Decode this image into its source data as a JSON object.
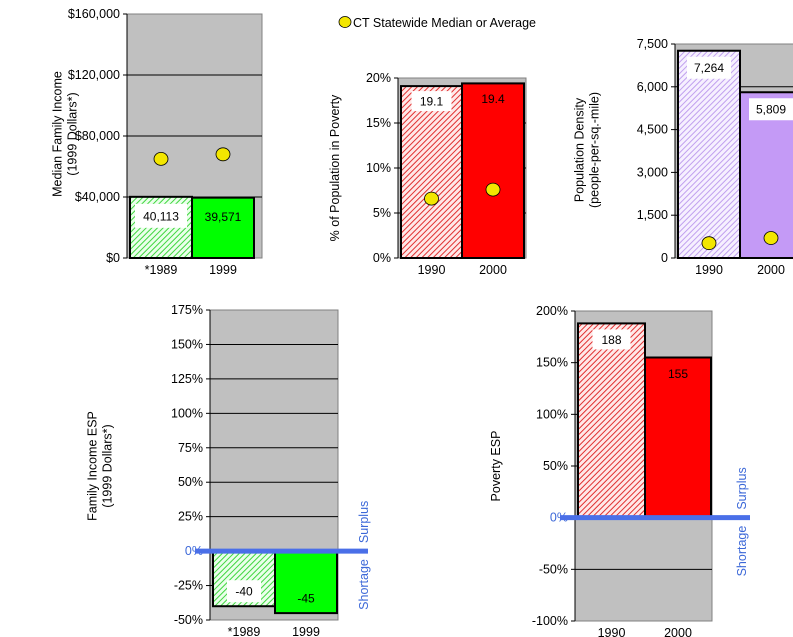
{
  "legend": {
    "label": "CT Statewide Median or Average",
    "marker_color": "#f3e600"
  },
  "colors": {
    "plot_bg": "#c0c0c0",
    "green_hatch": "#3fd63f",
    "green_solid": "#00ff00",
    "red_hatch": "#e03030",
    "red_solid": "#ff0000",
    "purple_hatch": "#c0a0ee",
    "purple_solid": "#c49af6",
    "zero_line": "#4a6fe8",
    "marker": "#f3e600"
  },
  "chart_data": [
    {
      "type": "bar",
      "ylabel_lines": [
        "Median  Family  Income",
        "(1999 Dollars*)"
      ],
      "categories": [
        "*1989",
        "1999"
      ],
      "values": [
        40113,
        39571
      ],
      "value_labels": [
        "40,113",
        "39,571"
      ],
      "statewide": [
        65000,
        68000
      ],
      "ylim": [
        0,
        160000
      ],
      "yticks": [
        0,
        40000,
        80000,
        120000,
        160000
      ],
      "ytick_labels": [
        "$0",
        "$40,000",
        "$80,000",
        "$120,000",
        "$160,000"
      ],
      "grid": true
    },
    {
      "type": "bar",
      "ylabel_lines": [
        "% of Population in Poverty"
      ],
      "categories": [
        "1990",
        "2000"
      ],
      "values": [
        19.1,
        19.4
      ],
      "value_labels": [
        "19.1",
        "19.4"
      ],
      "statewide": [
        6.6,
        7.6
      ],
      "ylim": [
        0,
        20
      ],
      "yticks": [
        0,
        5,
        10,
        15,
        20
      ],
      "ytick_labels": [
        "0%",
        "5%",
        "10%",
        "15%",
        "20%"
      ],
      "grid": true
    },
    {
      "type": "bar",
      "ylabel_lines": [
        "Population  Density",
        "(people-per-sq.-mile)"
      ],
      "categories": [
        "1990",
        "2000"
      ],
      "values": [
        7264,
        5809
      ],
      "value_labels": [
        "7,264",
        "5,809"
      ],
      "statewide": [
        520,
        700
      ],
      "ylim": [
        0,
        7500
      ],
      "yticks": [
        0,
        1500,
        3000,
        4500,
        6000,
        7500
      ],
      "ytick_labels": [
        "0",
        "1,500",
        "3,000",
        "4,500",
        "6,000",
        "7,500"
      ],
      "grid": true
    },
    {
      "type": "bar",
      "ylabel_lines": [
        "Family  Income  ESP",
        "(1999 Dollars*)"
      ],
      "categories": [
        "*1989",
        "1999"
      ],
      "values": [
        -40,
        -45
      ],
      "value_labels": [
        "-40",
        "-45"
      ],
      "ylim": [
        -50,
        175
      ],
      "yticks": [
        -50,
        -25,
        0,
        25,
        50,
        75,
        100,
        125,
        150,
        175
      ],
      "ytick_labels": [
        "-50%",
        "-25%",
        "0%",
        "25%",
        "50%",
        "75%",
        "100%",
        "125%",
        "150%",
        "175%"
      ],
      "grid": true,
      "surplus_label": "Surplus",
      "shortage_label": "Shortage"
    },
    {
      "type": "bar",
      "ylabel_lines": [
        "Poverty  ESP"
      ],
      "categories": [
        "1990",
        "2000"
      ],
      "values": [
        188,
        155
      ],
      "value_labels": [
        "188",
        "155"
      ],
      "ylim": [
        -100,
        200
      ],
      "yticks": [
        -100,
        -50,
        0,
        50,
        100,
        150,
        200
      ],
      "ytick_labels": [
        "-100%",
        "-50%",
        "0%",
        "50%",
        "100%",
        "150%",
        "200%"
      ],
      "grid": true,
      "surplus_label": "Surplus",
      "shortage_label": "Shortage"
    }
  ]
}
